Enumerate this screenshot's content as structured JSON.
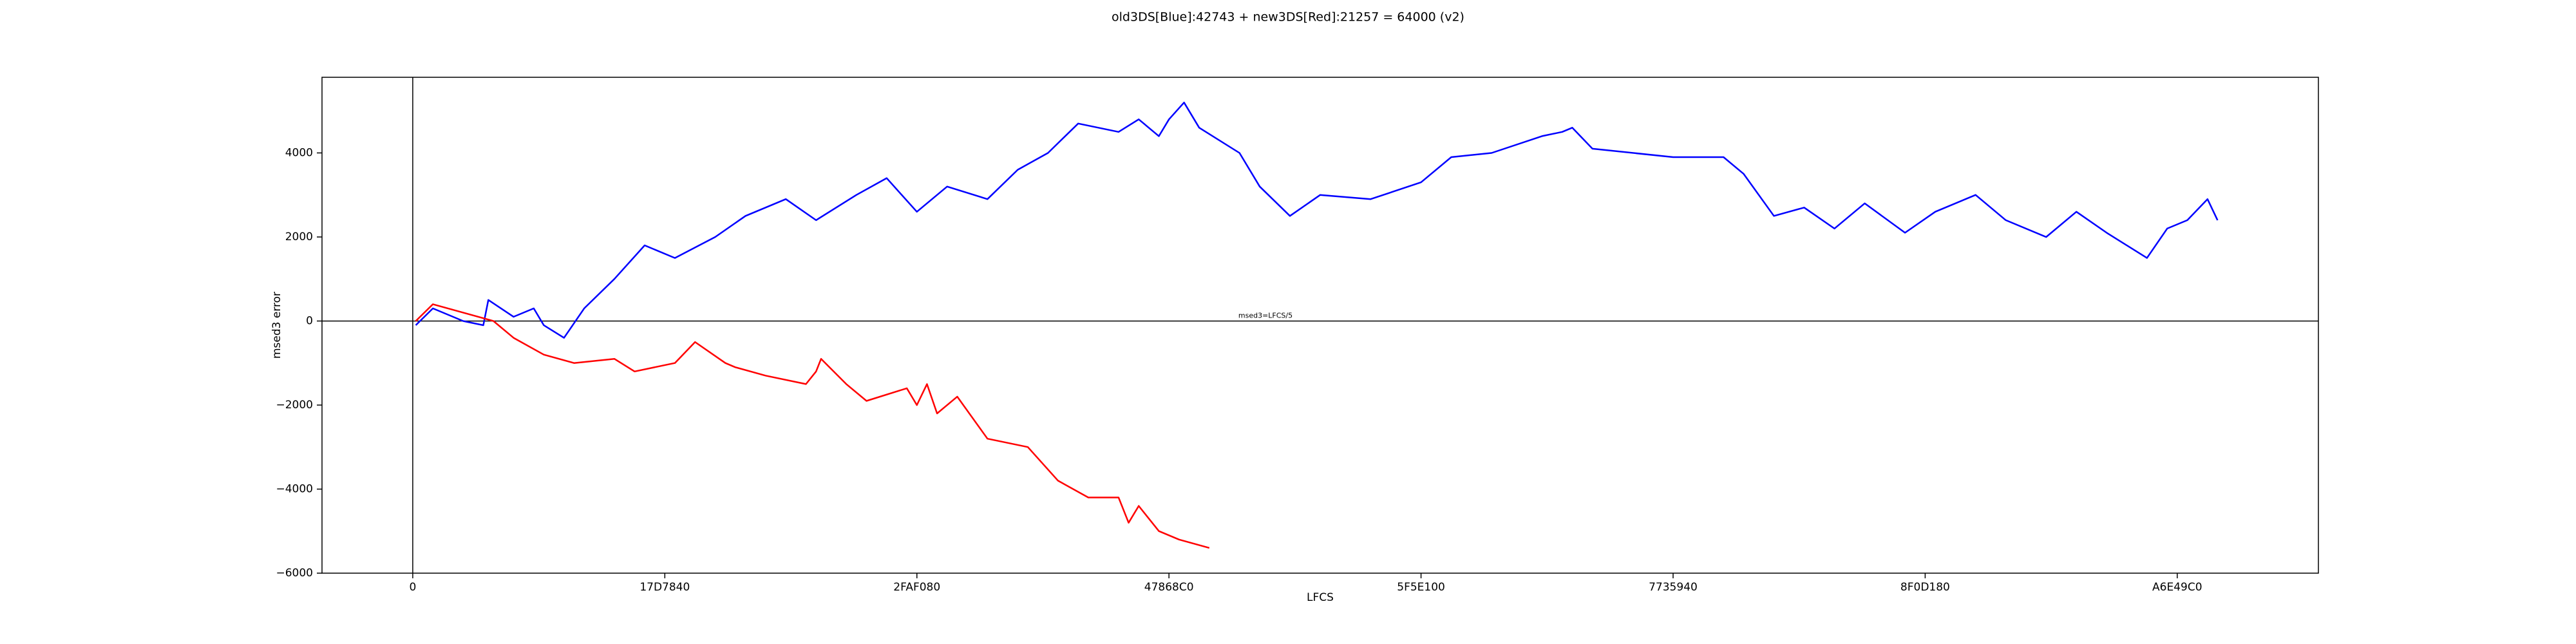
{
  "chart_data": {
    "type": "line",
    "title": "old3DS[Blue]:42743 + new3DS[Red]:21257 = 64000 (v2)",
    "xlabel": "LFCS",
    "ylabel": "msed3 error",
    "annotation": "msed3=LFCS/5",
    "xlim": [
      -9000000,
      189000000
    ],
    "ylim": [
      -6000,
      5800
    ],
    "xticks": [
      0,
      {
        "value": 25000000,
        "label": "17D7840"
      },
      {
        "value": 50000000,
        "label": "2FAF080"
      },
      {
        "value": 75000000,
        "label": "47868C0"
      },
      {
        "value": 100000000,
        "label": "5F5E100"
      },
      {
        "value": 125000000,
        "label": "7735940"
      },
      {
        "value": 150000000,
        "label": "8F0D180"
      },
      {
        "value": 175000000,
        "label": "A6E49C0"
      }
    ],
    "yticks": [
      {
        "value": -6000,
        "label": "−6000"
      },
      {
        "value": -4000,
        "label": "−4000"
      },
      {
        "value": -2000,
        "label": "−2000"
      },
      0,
      2000,
      4000
    ],
    "hline": 0,
    "vline": 0,
    "series": [
      {
        "color": "#0000ff",
        "x": [
          300000,
          2000000,
          5000000,
          7000000,
          7500000,
          10000000,
          12000000,
          13000000,
          15000000,
          17000000,
          20000000,
          23000000,
          26000000,
          30000000,
          33000000,
          37000000,
          40000000,
          44000000,
          47000000,
          50000000,
          53000000,
          57000000,
          60000000,
          63000000,
          66000000,
          70000000,
          72000000,
          74000000,
          75000000,
          76500000,
          78000000,
          82000000,
          84000000,
          87000000,
          90000000,
          95000000,
          100000000,
          103000000,
          107000000,
          112000000,
          114000000,
          115000000,
          117000000,
          125000000,
          130000000,
          132000000,
          135000000,
          138000000,
          141000000,
          144000000,
          148000000,
          151000000,
          155000000,
          158000000,
          162000000,
          165000000,
          168000000,
          172000000,
          174000000,
          176000000,
          178000000,
          179000000
        ],
        "values": [
          -100,
          300,
          0,
          -100,
          500,
          100,
          300,
          -100,
          -400,
          300,
          1000,
          1800,
          1500,
          2000,
          2500,
          2900,
          2400,
          3000,
          3400,
          2600,
          3200,
          2900,
          3600,
          4000,
          4700,
          4500,
          4800,
          4400,
          4800,
          5200,
          4600,
          4000,
          3200,
          2500,
          3000,
          2900,
          3300,
          3900,
          4000,
          4400,
          4500,
          4600,
          4100,
          3900,
          3900,
          3500,
          2500,
          2700,
          2200,
          2800,
          2100,
          2600,
          3000,
          2400,
          2000,
          2600,
          2100,
          1500,
          2200,
          2400,
          2900,
          2400
        ]
      },
      {
        "color": "#ff0000",
        "x": [
          300000,
          2000000,
          5000000,
          8000000,
          10000000,
          13000000,
          16000000,
          20000000,
          22000000,
          26000000,
          28000000,
          31000000,
          32000000,
          35000000,
          39000000,
          40000000,
          40500000,
          43000000,
          45000000,
          49000000,
          50000000,
          51000000,
          52000000,
          54000000,
          57000000,
          61000000,
          64000000,
          67000000,
          70000000,
          71000000,
          72000000,
          74000000,
          76000000,
          79000000
        ],
        "values": [
          0,
          400,
          200,
          0,
          -400,
          -800,
          -1000,
          -900,
          -1200,
          -1000,
          -500,
          -1000,
          -1100,
          -1300,
          -1500,
          -1200,
          -900,
          -1500,
          -1900,
          -1600,
          -2000,
          -1500,
          -2200,
          -1800,
          -2800,
          -3000,
          -3800,
          -4200,
          -4200,
          -4800,
          -4400,
          -5000,
          -5200,
          -5400
        ]
      }
    ]
  }
}
